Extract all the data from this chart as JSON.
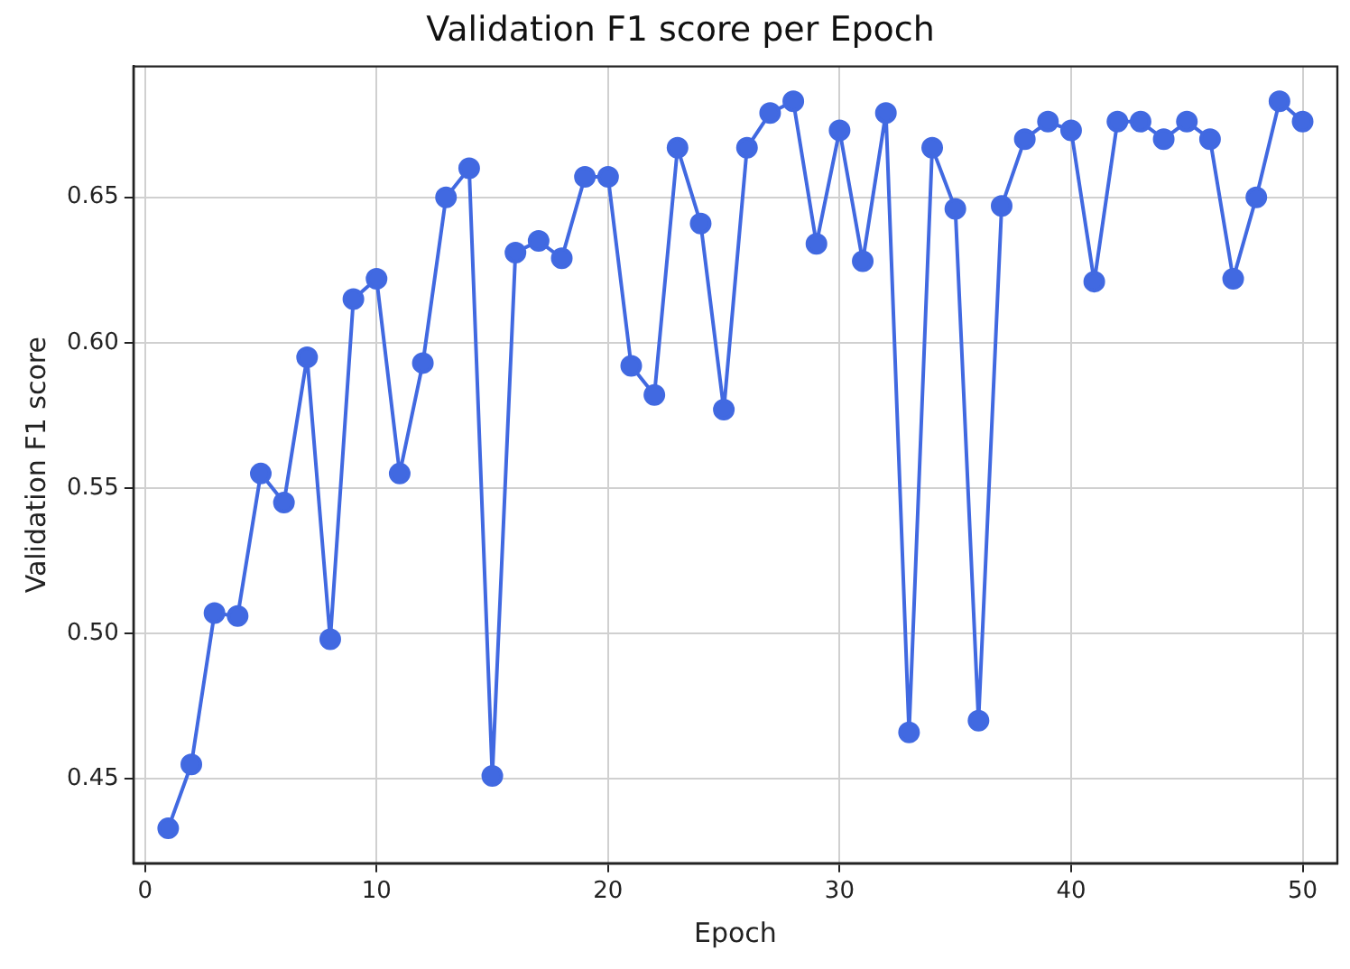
{
  "chart_data": {
    "type": "line",
    "title": "Validation F1 score per Epoch",
    "xlabel": "Epoch",
    "ylabel": "Validation F1 score",
    "x": [
      1,
      2,
      3,
      4,
      5,
      6,
      7,
      8,
      9,
      10,
      11,
      12,
      13,
      14,
      15,
      16,
      17,
      18,
      19,
      20,
      21,
      22,
      23,
      24,
      25,
      26,
      27,
      28,
      29,
      30,
      31,
      32,
      33,
      34,
      35,
      36,
      37,
      38,
      39,
      40,
      41,
      42,
      43,
      44,
      45,
      46,
      47,
      48,
      49,
      50
    ],
    "series": [
      {
        "color": "#4169e1",
        "values": [
          0.433,
          0.455,
          0.507,
          0.506,
          0.555,
          0.545,
          0.595,
          0.498,
          0.615,
          0.622,
          0.555,
          0.593,
          0.65,
          0.66,
          0.451,
          0.631,
          0.635,
          0.629,
          0.657,
          0.657,
          0.592,
          0.582,
          0.667,
          0.641,
          0.577,
          0.667,
          0.679,
          0.683,
          0.634,
          0.673,
          0.628,
          0.679,
          0.466,
          0.667,
          0.646,
          0.47,
          0.647,
          0.67,
          0.676,
          0.673,
          0.621,
          0.676,
          0.676,
          0.67,
          0.676,
          0.67,
          0.622,
          0.65,
          0.683,
          0.676
        ]
      }
    ],
    "xlim": [
      -0.5,
      51.5
    ],
    "xticks": [
      0,
      10,
      20,
      30,
      40,
      50
    ],
    "ylim": [
      0.421,
      0.695
    ],
    "yticks": [
      {
        "value": 0.45,
        "label": "0.45"
      },
      {
        "value": 0.5,
        "label": "0.50"
      },
      {
        "value": 0.55,
        "label": "0.55"
      },
      {
        "value": 0.6,
        "label": "0.60"
      },
      {
        "value": 0.65,
        "label": "0.65"
      }
    ],
    "grid": true,
    "marker": "circle",
    "line_style": "solid"
  }
}
